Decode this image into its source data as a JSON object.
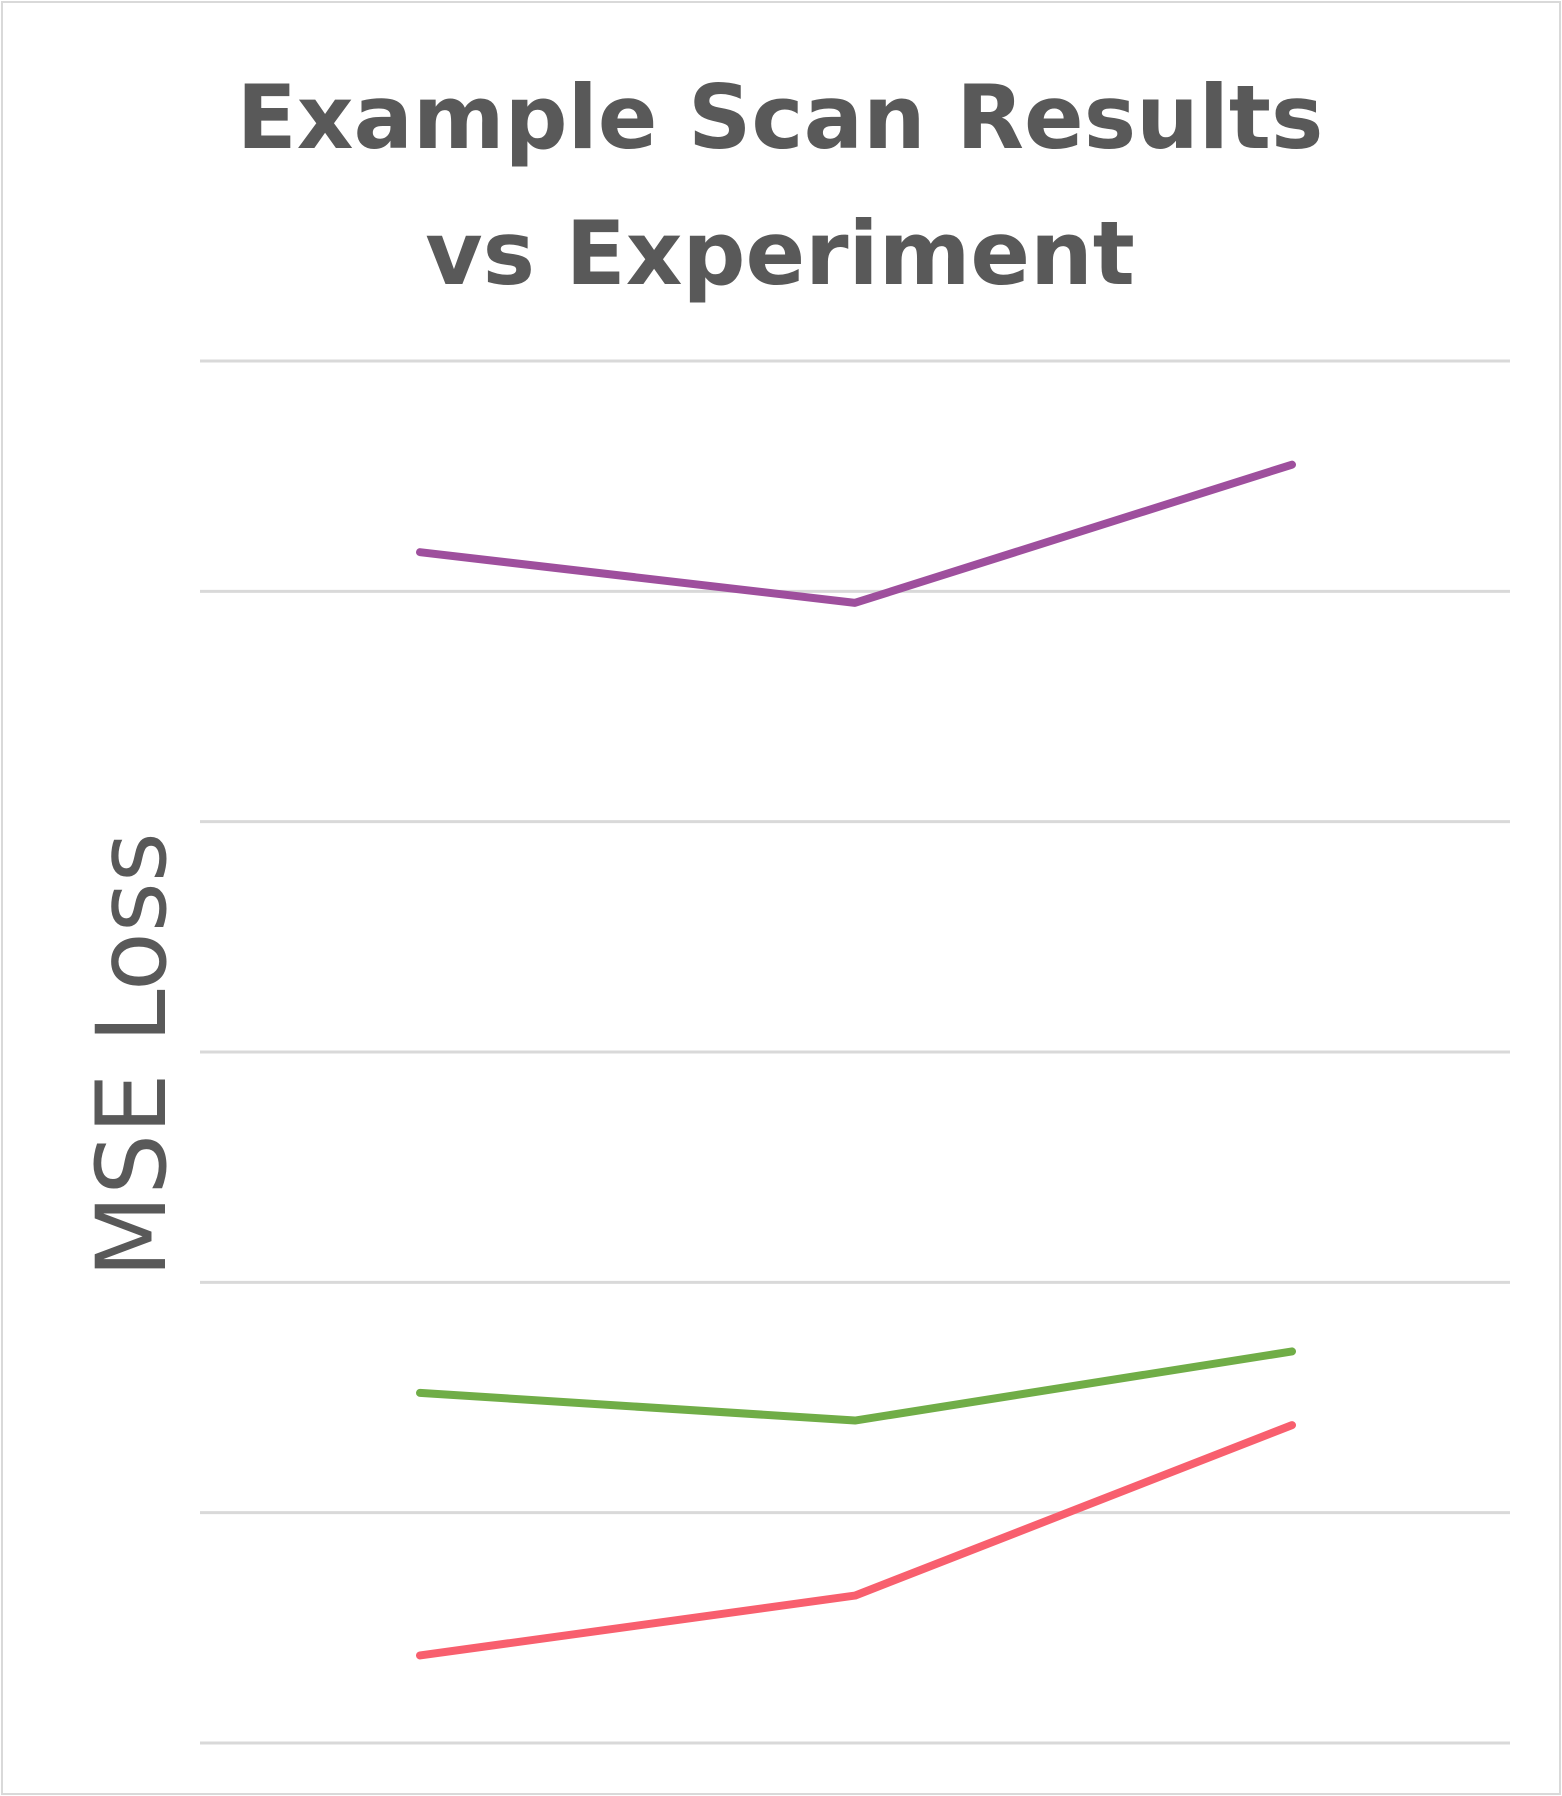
{
  "chart_data": {
    "type": "line",
    "title": "Example Scan Results vs Experiment",
    "xlabel": "",
    "ylabel": "MSE Loss",
    "x": [
      1,
      2,
      3
    ],
    "ylim": [
      0,
      6
    ],
    "grid": true,
    "legend": "none",
    "series": [
      {
        "color": "#9e4f9d",
        "values": [
          5.17,
          4.95,
          5.55
        ]
      },
      {
        "color": "#70ad47",
        "values": [
          1.52,
          1.4,
          1.7
        ]
      },
      {
        "color": "#f85f6e",
        "values": [
          0.38,
          0.64,
          1.38
        ]
      }
    ]
  }
}
